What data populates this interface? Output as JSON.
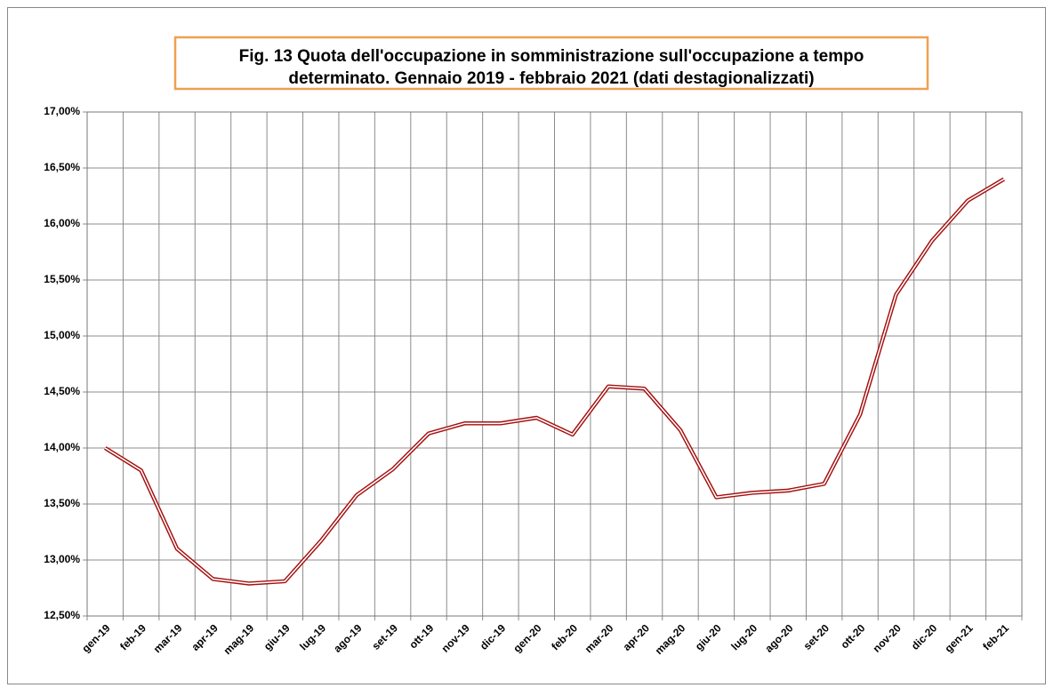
{
  "chart_data": {
    "type": "line",
    "title": [
      "Fig. 13 Quota dell'occupazione in somministrazione sull'occupazione a tempo",
      "determinato. Gennaio 2019 - febbraio 2021 (dati destagionalizzati)"
    ],
    "categories": [
      "gen-19",
      "feb-19",
      "mar-19",
      "apr-19",
      "mag-19",
      "giu-19",
      "lug-19",
      "ago-19",
      "set-19",
      "ott-19",
      "nov-19",
      "dic-19",
      "gen-20",
      "feb-20",
      "mar-20",
      "apr-20",
      "mag-20",
      "giu-20",
      "lug-20",
      "ago-20",
      "set-20",
      "ott-20",
      "nov-20",
      "dic-20",
      "gen-21",
      "feb-21"
    ],
    "values": [
      14.0,
      13.8,
      13.1,
      12.83,
      12.79,
      12.81,
      13.17,
      13.58,
      13.81,
      14.13,
      14.22,
      14.22,
      14.27,
      14.12,
      14.55,
      14.53,
      14.16,
      13.56,
      13.6,
      13.62,
      13.68,
      14.3,
      15.37,
      15.85,
      16.21,
      16.4
    ],
    "color": "#a50f0f",
    "ylim": [
      12.5,
      17
    ],
    "yticks": [
      {
        "value": 12.5,
        "label": "12,50%"
      },
      {
        "value": 13,
        "label": "13,00%"
      },
      {
        "value": 13.5,
        "label": "13,50%"
      },
      {
        "value": 14,
        "label": "14,00%"
      },
      {
        "value": 14.5,
        "label": "14,50%"
      },
      {
        "value": 15,
        "label": "15,00%"
      },
      {
        "value": 15.5,
        "label": "15,50%"
      },
      {
        "value": 16,
        "label": "16,00%"
      },
      {
        "value": 16.5,
        "label": "16,50%"
      },
      {
        "value": 17,
        "label": "17,00%"
      }
    ],
    "grid": true
  }
}
